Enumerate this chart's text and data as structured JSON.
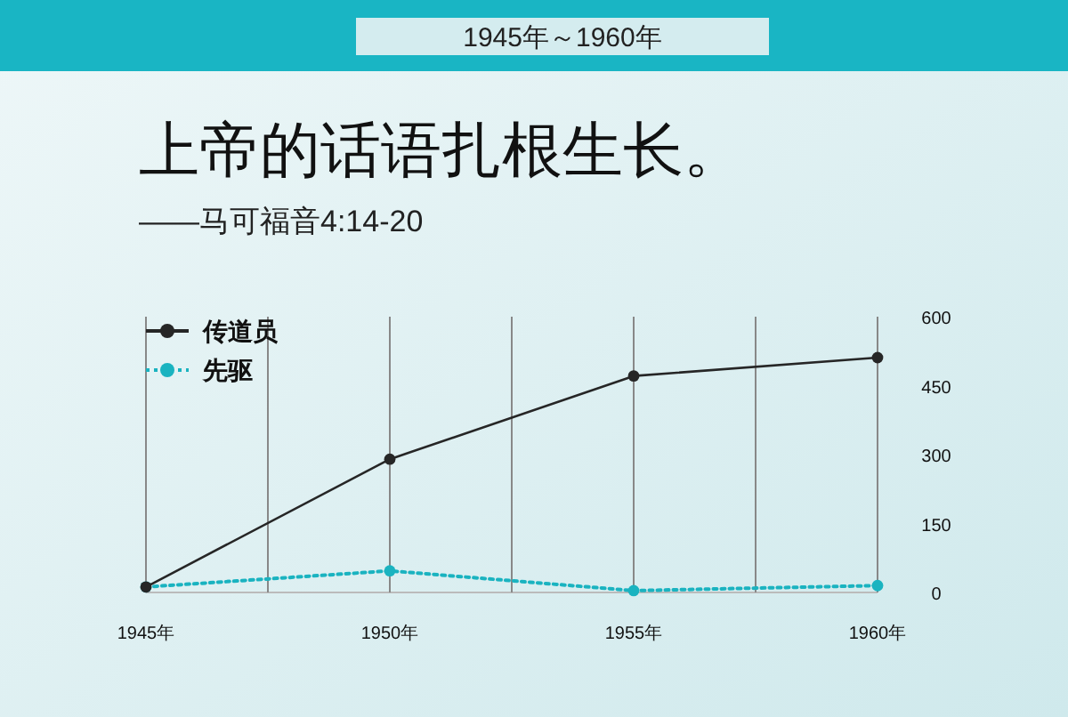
{
  "chart_data": {
    "type": "line",
    "title": "上帝的话语扎根生长。",
    "subtitle": "——马可福音4:14-20",
    "annotations": [
      "1945年～1960年"
    ],
    "x": [
      1945,
      1950,
      1955,
      1960
    ],
    "series": [
      {
        "name": "传道员",
        "color": "#262626",
        "marker": "circle",
        "line_style": "solid",
        "values": [
          12,
          290,
          471,
          511
        ]
      },
      {
        "name": "先驱",
        "color": "#1ab3c0",
        "marker": "circle",
        "line_style": "dotted",
        "values": [
          12,
          47,
          4,
          15
        ]
      }
    ],
    "xlim": [
      1945,
      1960
    ],
    "xticks": [
      {
        "value": 1945,
        "label": "1945年"
      },
      {
        "value": 1947.5,
        "label": null
      },
      {
        "value": 1950,
        "label": "1950年"
      },
      {
        "value": 1952.5,
        "label": null
      },
      {
        "value": 1955,
        "label": "1955年"
      },
      {
        "value": 1957.5,
        "label": null
      },
      {
        "value": 1960,
        "label": "1960年"
      }
    ],
    "ylim": [
      0,
      600
    ],
    "yticks": [
      0,
      150,
      300,
      450,
      600
    ],
    "grid": "x",
    "legend": "top left"
  }
}
